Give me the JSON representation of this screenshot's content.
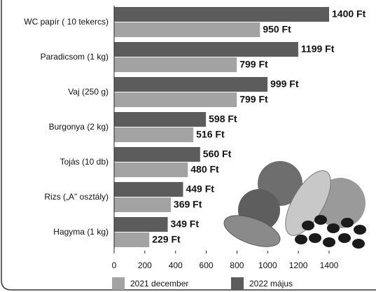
{
  "chart_data": {
    "type": "bar",
    "orientation": "horizontal",
    "categories": [
      "WC papír ( 10 tekercs)",
      "Paradicsom (1 kg)",
      "Vaj (250 g)",
      "Burgonya (2 kg)",
      "Tojás (10 db)",
      "Rizs („A\" osztály)",
      "Hagyma (1 kg)"
    ],
    "series": [
      {
        "name": "2021 december",
        "color": "#a3a3a3",
        "values": [
          950,
          799,
          799,
          516,
          480,
          369,
          229
        ],
        "value_labels": [
          "950 Ft",
          "799 Ft",
          "799 Ft",
          "516 Ft",
          "480 Ft",
          "369 Ft",
          "229 Ft"
        ]
      },
      {
        "name": "2022 május",
        "color": "#5c5c5c",
        "values": [
          1400,
          1199,
          999,
          598,
          560,
          449,
          349
        ],
        "value_labels": [
          "1400 Ft",
          "1199 Ft",
          "999 Ft",
          "598 Ft",
          "560 Ft",
          "449 Ft",
          "349 Ft"
        ]
      }
    ],
    "xlim": [
      0,
      1400
    ],
    "xticks": [
      0,
      200,
      400,
      600,
      800,
      1000,
      1200,
      1400
    ],
    "legend": "bottom"
  }
}
